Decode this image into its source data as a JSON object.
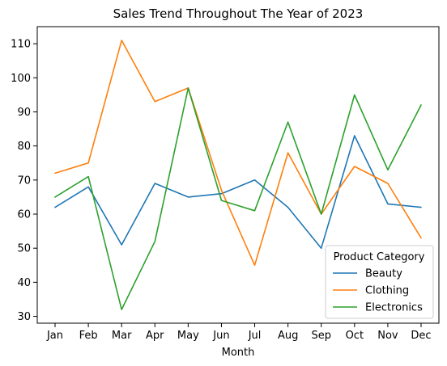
{
  "chart_data": {
    "type": "line",
    "title": "Sales Trend Throughout The Year of 2023",
    "xlabel": "Month",
    "ylabel": "",
    "categories": [
      "Jan",
      "Feb",
      "Mar",
      "Apr",
      "May",
      "Jun",
      "Jul",
      "Aug",
      "Sep",
      "Oct",
      "Nov",
      "Dec"
    ],
    "ylim": [
      28,
      115
    ],
    "yticks": [
      30,
      40,
      50,
      60,
      70,
      80,
      90,
      100,
      110
    ],
    "grid": false,
    "legend": {
      "title": "Product Category",
      "placement": "lower-right"
    },
    "series": [
      {
        "name": "Beauty",
        "color": "#1f77b4",
        "values": [
          62,
          68,
          51,
          69,
          65,
          66,
          70,
          62,
          50,
          83,
          63,
          62
        ]
      },
      {
        "name": "Clothing",
        "color": "#ff7f0e",
        "values": [
          72,
          75,
          111,
          93,
          97,
          67,
          45,
          78,
          60,
          74,
          69,
          53
        ]
      },
      {
        "name": "Electronics",
        "color": "#2ca02c",
        "values": [
          65,
          71,
          32,
          52,
          97,
          64,
          61,
          87,
          60,
          95,
          73,
          92
        ]
      }
    ]
  }
}
